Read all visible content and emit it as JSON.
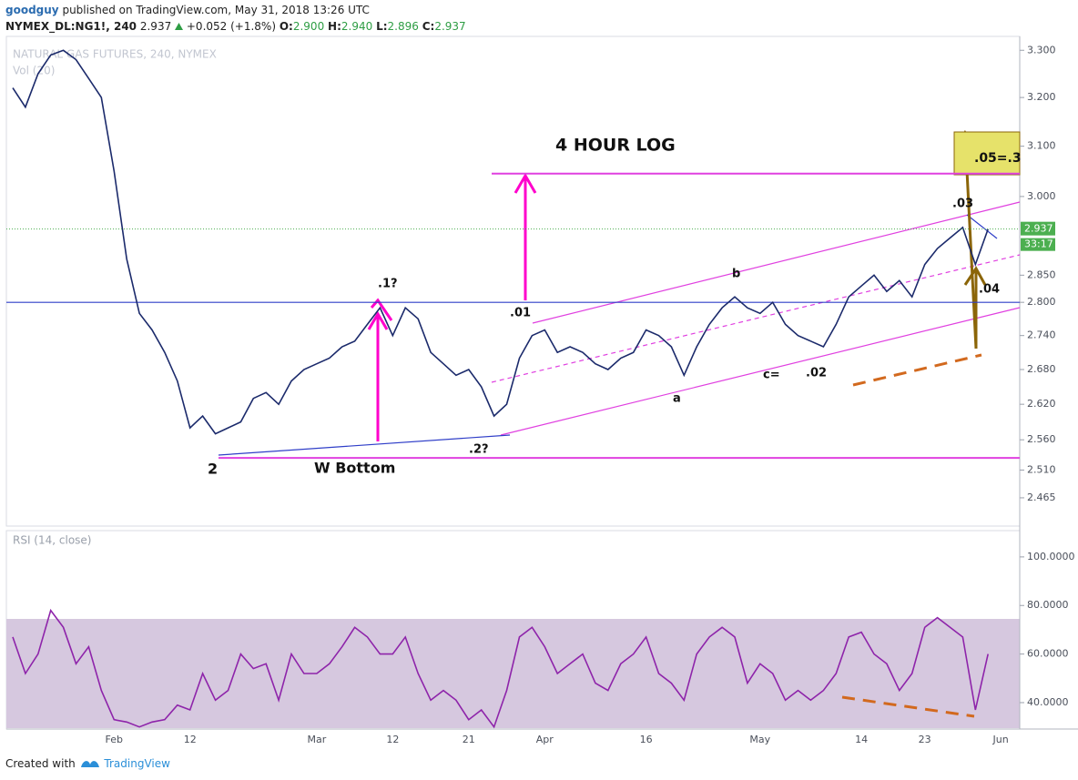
{
  "header": {
    "user": "goodguy",
    "published": "published on TradingView.com, May 31, 2018 13:26 UTC",
    "symbol": "NYMEX_DL:NG1!, 240",
    "last": "2.937",
    "change": "+0.052 (+1.8%)",
    "ohlc": [
      {
        "label": "O:",
        "value": "2.900"
      },
      {
        "label": "H:",
        "value": "2.940"
      },
      {
        "label": "L:",
        "value": "2.896"
      },
      {
        "label": "C:",
        "value": "2.937"
      }
    ]
  },
  "footer": {
    "created": "Created with",
    "brand": "TradingView"
  },
  "chart_data": [
    {
      "type": "line",
      "title": "NATURAL GAS FUTURES, 240, NYMEX",
      "volume_label": "Vol (20)",
      "log_scale": true,
      "color": "#1b2a6b",
      "categories": [
        null,
        null,
        null,
        null,
        null,
        null,
        null,
        null,
        "Feb",
        null,
        null,
        null,
        null,
        null,
        "12",
        null,
        null,
        null,
        null,
        null,
        null,
        null,
        null,
        null,
        "Mar",
        null,
        null,
        null,
        null,
        null,
        "12",
        null,
        null,
        null,
        null,
        null,
        "21",
        null,
        null,
        null,
        null,
        null,
        "Apr",
        null,
        null,
        null,
        null,
        null,
        null,
        null,
        "16",
        null,
        null,
        null,
        null,
        null,
        null,
        null,
        null,
        "May",
        null,
        null,
        null,
        null,
        null,
        null,
        null,
        "14",
        null,
        null,
        null,
        null,
        "23",
        null,
        null,
        null,
        null,
        null,
        "Jun",
        null
      ],
      "values": [
        3.22,
        3.18,
        3.25,
        3.29,
        3.3,
        3.28,
        3.24,
        3.2,
        3.05,
        2.88,
        2.78,
        2.75,
        2.71,
        2.66,
        2.58,
        2.6,
        2.57,
        2.58,
        2.59,
        2.63,
        2.64,
        2.62,
        2.66,
        2.68,
        2.69,
        2.7,
        2.72,
        2.73,
        2.76,
        2.79,
        2.74,
        2.79,
        2.77,
        2.71,
        2.69,
        2.67,
        2.68,
        2.65,
        2.6,
        2.62,
        2.7,
        2.74,
        2.75,
        2.71,
        2.72,
        2.71,
        2.69,
        2.68,
        2.7,
        2.71,
        2.75,
        2.74,
        2.72,
        2.67,
        2.72,
        2.76,
        2.79,
        2.81,
        2.79,
        2.78,
        2.8,
        2.76,
        2.74,
        2.73,
        2.72,
        2.76,
        2.81,
        2.83,
        2.85,
        2.82,
        2.84,
        2.81,
        2.87,
        2.9,
        2.92,
        2.94,
        2.87,
        2.937,
        null,
        null
      ],
      "ylim": [
        2.42,
        3.33
      ],
      "yticks": [
        {
          "value": 3.3,
          "label": "3.300"
        },
        {
          "value": 3.2,
          "label": "3.200"
        },
        {
          "value": 3.1,
          "label": "3.100"
        },
        {
          "value": 3.0,
          "label": "3.000"
        },
        {
          "value": 2.85,
          "label": "2.850"
        },
        {
          "value": 2.8,
          "label": "2.800"
        },
        {
          "value": 2.74,
          "label": "2.740"
        },
        {
          "value": 2.68,
          "label": "2.680"
        },
        {
          "value": 2.62,
          "label": "2.620"
        },
        {
          "value": 2.56,
          "label": "2.560"
        },
        {
          "value": 2.51,
          "label": "2.510"
        },
        {
          "value": 2.465,
          "label": "2.465"
        }
      ],
      "levels": [
        {
          "value": 2.8,
          "color": "#2f3ec8"
        },
        {
          "value": 3.045,
          "color": "#e040e0"
        },
        {
          "value": 2.53,
          "color": "#e040e0"
        }
      ],
      "price_badge": "2.937",
      "countdown": "33:17",
      "annotations": [
        "4 HOUR  LOG",
        ".1?",
        ".01",
        "b",
        ".03",
        ".04",
        "a",
        "c=",
        ".02",
        ".2?",
        "2",
        "W Bottom",
        ".05=.3"
      ]
    },
    {
      "type": "line",
      "title": "RSI (14, close)",
      "color": "#8e24aa",
      "values": [
        67,
        52,
        60,
        78,
        71,
        56,
        63,
        45,
        33,
        32,
        30,
        32,
        33,
        39,
        37,
        52,
        41,
        45,
        60,
        54,
        56,
        41,
        60,
        52,
        52,
        56,
        63,
        71,
        67,
        60,
        60,
        67,
        52,
        41,
        45,
        41,
        33,
        37,
        30,
        45,
        67,
        71,
        63,
        52,
        56,
        60,
        48,
        45,
        56,
        60,
        67,
        52,
        48,
        41,
        60,
        67,
        71,
        67,
        48,
        56,
        52,
        41,
        45,
        41,
        45,
        52,
        67,
        69,
        60,
        56,
        45,
        52,
        71,
        75,
        71,
        67,
        37,
        60,
        null,
        null
      ],
      "ylim": [
        29.5,
        109.7
      ],
      "yticks": [
        {
          "value": 100,
          "label": "100.0000"
        },
        {
          "value": 80,
          "label": "80.0000"
        },
        {
          "value": 60,
          "label": "60.0000"
        },
        {
          "value": 40,
          "label": "40.0000"
        }
      ]
    }
  ]
}
